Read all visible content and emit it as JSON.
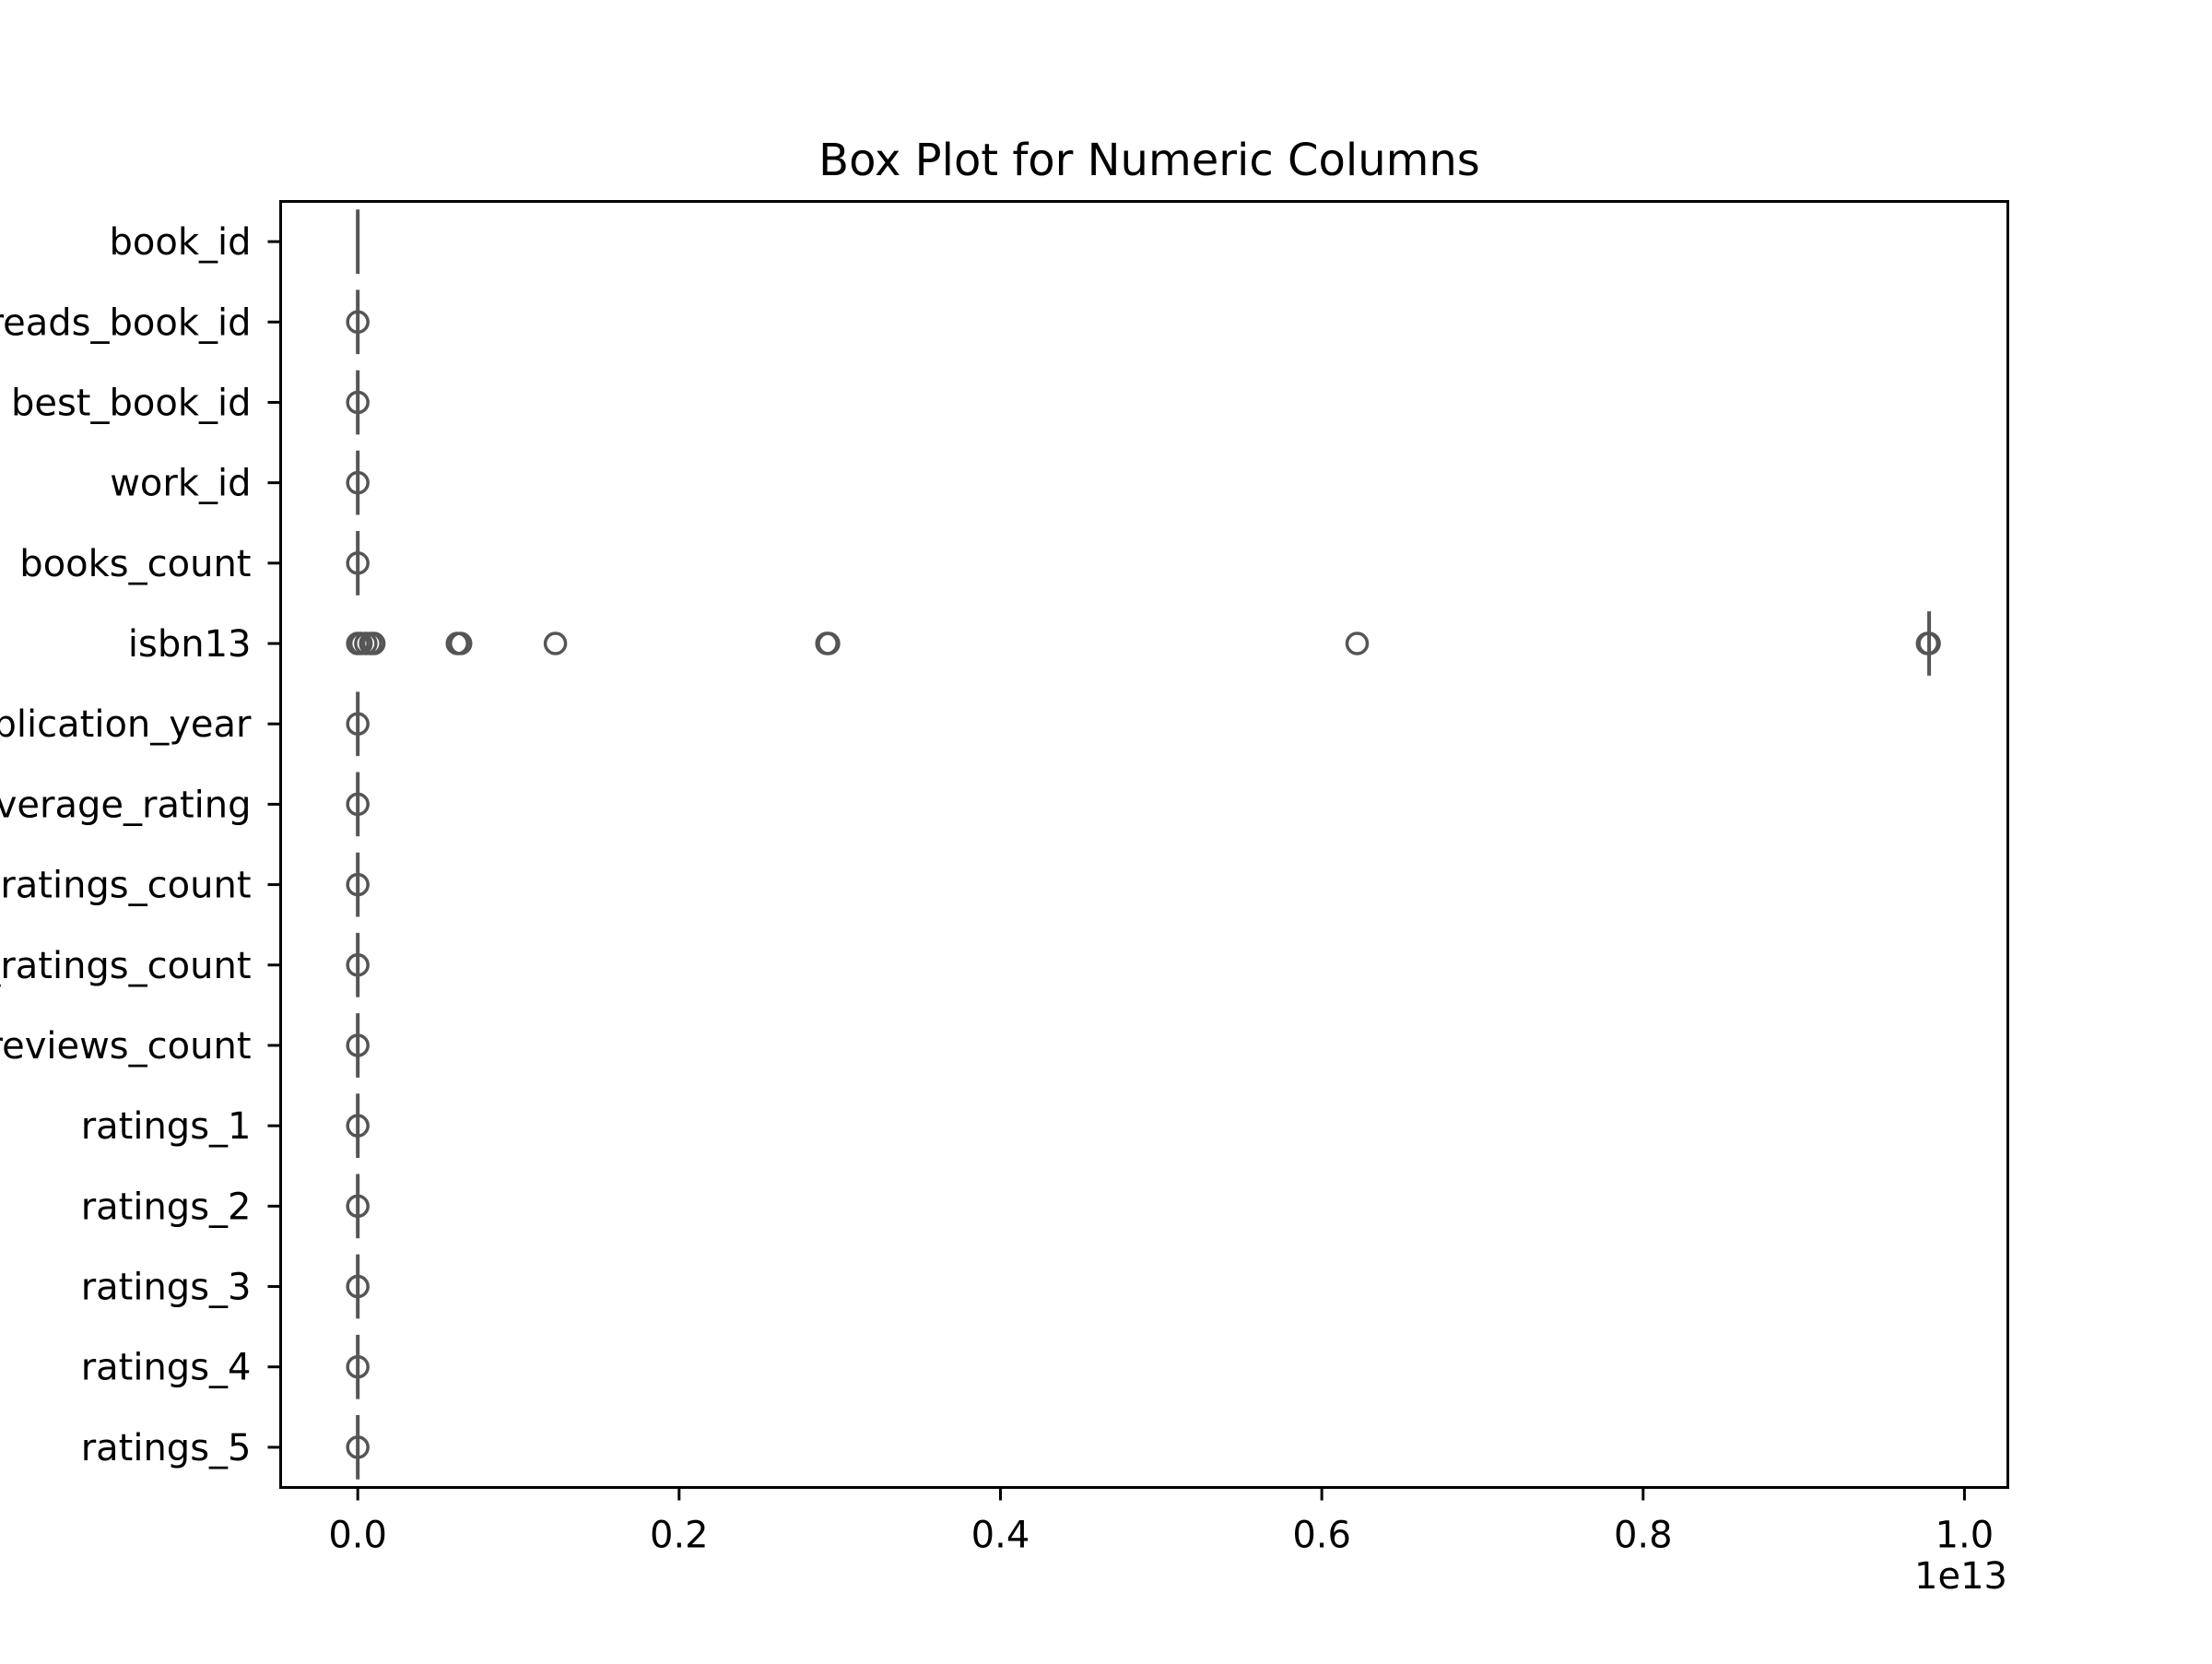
{
  "chart_data": {
    "type": "box",
    "orientation": "horizontal",
    "title": "Box Plot for Numeric Columns",
    "xlabel": "",
    "ylabel": "",
    "x_offset_label": "1e13",
    "x_scale_factor": 10000000000000.0,
    "xlim": [
      -0.048,
      1.027
    ],
    "x_ticks": [
      0.0,
      0.2,
      0.4,
      0.6,
      0.8,
      1.0
    ],
    "x_tick_labels": [
      "0.0",
      "0.2",
      "0.4",
      "0.6",
      "0.8",
      "1.0"
    ],
    "color": "#555555",
    "grid": false,
    "legend": "none",
    "categories": [
      "book_id",
      "goodreads_book_id",
      "best_book_id",
      "work_id",
      "books_count",
      "isbn13",
      "original_publication_year",
      "average_rating",
      "ratings_count",
      "work_ratings_count",
      "work_text_reviews_count",
      "ratings_1",
      "ratings_2",
      "ratings_3",
      "ratings_4",
      "ratings_5"
    ],
    "series": [
      {
        "category": "book_id",
        "whisker_low": 0.0,
        "whisker_high": 0.0,
        "outliers": []
      },
      {
        "category": "goodreads_book_id",
        "whisker_low": 0.0,
        "whisker_high": 0.0,
        "outliers": [
          0.0
        ]
      },
      {
        "category": "best_book_id",
        "whisker_low": 0.0,
        "whisker_high": 0.0,
        "outliers": [
          0.0
        ]
      },
      {
        "category": "work_id",
        "whisker_low": 0.0,
        "whisker_high": 0.0,
        "outliers": [
          0.0
        ]
      },
      {
        "category": "books_count",
        "whisker_low": 0.0,
        "whisker_high": 0.0,
        "outliers": [
          0.0
        ]
      },
      {
        "category": "isbn13",
        "whisker_low": 0.978,
        "whisker_high": 0.978,
        "outliers": [
          0.0,
          0.002,
          0.005,
          0.008,
          0.01,
          0.062,
          0.064,
          0.123,
          0.292,
          0.293,
          0.622,
          0.977,
          0.978
        ]
      },
      {
        "category": "original_publication_year",
        "whisker_low": 0.0,
        "whisker_high": 0.0,
        "outliers": [
          0.0
        ]
      },
      {
        "category": "average_rating",
        "whisker_low": 0.0,
        "whisker_high": 0.0,
        "outliers": [
          0.0
        ]
      },
      {
        "category": "ratings_count",
        "whisker_low": 0.0,
        "whisker_high": 0.0,
        "outliers": [
          0.0
        ]
      },
      {
        "category": "work_ratings_count",
        "whisker_low": 0.0,
        "whisker_high": 0.0,
        "outliers": [
          0.0
        ]
      },
      {
        "category": "work_text_reviews_count",
        "whisker_low": 0.0,
        "whisker_high": 0.0,
        "outliers": [
          0.0
        ]
      },
      {
        "category": "ratings_1",
        "whisker_low": 0.0,
        "whisker_high": 0.0,
        "outliers": [
          0.0
        ]
      },
      {
        "category": "ratings_2",
        "whisker_low": 0.0,
        "whisker_high": 0.0,
        "outliers": [
          0.0
        ]
      },
      {
        "category": "ratings_3",
        "whisker_low": 0.0,
        "whisker_high": 0.0,
        "outliers": [
          0.0
        ]
      },
      {
        "category": "ratings_4",
        "whisker_low": 0.0,
        "whisker_high": 0.0,
        "outliers": [
          0.0
        ]
      },
      {
        "category": "ratings_5",
        "whisker_low": 0.0,
        "whisker_high": 0.0,
        "outliers": [
          0.0
        ]
      }
    ]
  }
}
